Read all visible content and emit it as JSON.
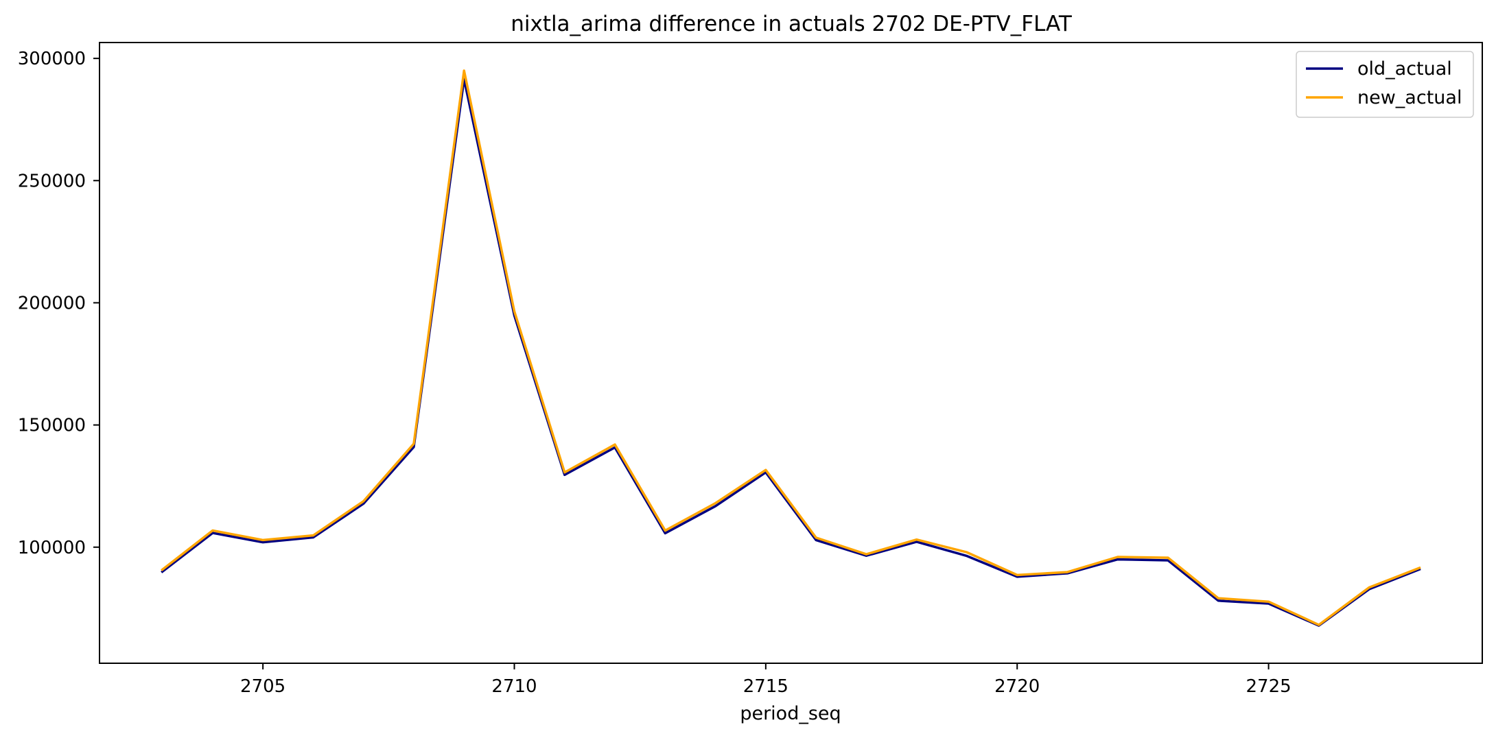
{
  "chart_data": {
    "type": "line",
    "title": "nixtla_arima difference in actuals 2702 DE-PTV_FLAT",
    "xlabel": "period_seq",
    "ylabel": "",
    "xlim": [
      2701.75,
      2729.25
    ],
    "ylim": [
      52500,
      306500
    ],
    "x_ticks": [
      2705,
      2710,
      2715,
      2720,
      2725
    ],
    "y_ticks": [
      100000,
      150000,
      200000,
      250000,
      300000
    ],
    "legend_position": "top-right",
    "grid": false,
    "x": [
      2703,
      2704,
      2705,
      2706,
      2707,
      2708,
      2709,
      2710,
      2711,
      2712,
      2713,
      2714,
      2715,
      2716,
      2717,
      2718,
      2719,
      2720,
      2721,
      2722,
      2723,
      2724,
      2725,
      2726,
      2727,
      2728
    ],
    "series": [
      {
        "name": "old_actual",
        "color": "#000080",
        "values": [
          90000,
          105800,
          102000,
          104000,
          117800,
          141000,
          291500,
          194800,
          129600,
          140800,
          105700,
          116800,
          130600,
          102900,
          96500,
          102200,
          96400,
          87900,
          89300,
          95000,
          94600,
          78100,
          76900,
          67900,
          82800,
          90900
        ]
      },
      {
        "name": "new_actual",
        "color": "#FFA500",
        "values": [
          90800,
          106800,
          102900,
          104800,
          118800,
          142300,
          295000,
          196500,
          130600,
          142000,
          106800,
          118000,
          131600,
          103900,
          97100,
          103100,
          97900,
          88600,
          89800,
          96000,
          95700,
          79100,
          77700,
          68200,
          83500,
          91500
        ]
      }
    ]
  }
}
